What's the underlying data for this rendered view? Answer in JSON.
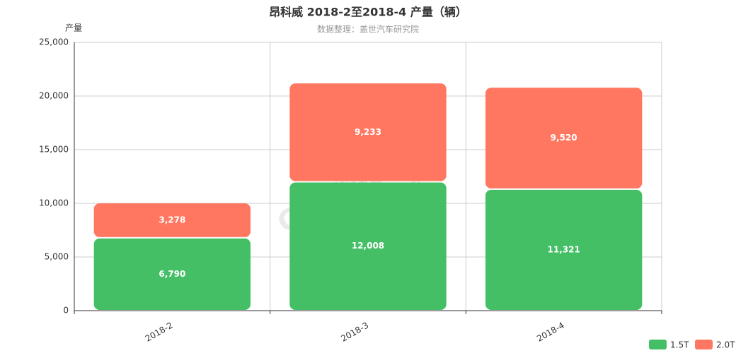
{
  "chart_data": {
    "type": "stacked_bar",
    "title": "昂科威 2018-2至2018-4 产量（辆）",
    "subtitle": "数据整理：盖世汽车研究院",
    "y_label": "产量",
    "watermark": [
      "盖世汽车",
      "Gasgoo",
      "auto.gasgoo.com"
    ],
    "categories": [
      "2018-2",
      "2018-3",
      "2018-4"
    ],
    "series": [
      {
        "name": "1.5T",
        "color": "#44bf66",
        "values": [
          6790,
          12008,
          11321
        ],
        "value_labels": [
          "6,790",
          "12,008",
          "11,321"
        ]
      },
      {
        "name": "2.0T",
        "color": "#ff7760",
        "values": [
          3278,
          9233,
          9520
        ],
        "value_labels": [
          "3,278",
          "9,233",
          "9,520"
        ]
      }
    ],
    "ylim": [
      0,
      25000
    ],
    "yticks": [
      0,
      {
        "value": 5000,
        "label": "5,000"
      },
      {
        "value": 10000,
        "label": "10,000"
      },
      {
        "value": 15000,
        "label": "15,000"
      },
      {
        "value": 20000,
        "label": "20,000"
      },
      {
        "value": 25000,
        "label": "25,000"
      }
    ],
    "grid": true,
    "legend": "bottom-right"
  }
}
